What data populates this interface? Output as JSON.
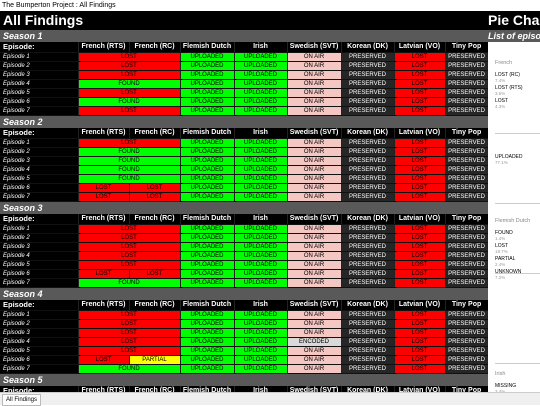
{
  "window": {
    "title": "The Bumperton Project : All Findings"
  },
  "sheet": {
    "title": "All Findings",
    "columns": [
      "Episode:",
      "French (RTS)",
      "French (RC)",
      "Flemish Dutch",
      "Irish",
      "Swedish (SVT)",
      "Korean (DK)",
      "Latvian (VO)",
      "Tiny Pop"
    ],
    "seasons": [
      {
        "name": "Season 1",
        "rows": [
          {
            "ep": "Episode 1",
            "fr_rts": "",
            "fr_rc": "LOST",
            "fr_span": true,
            "flemish": "UPLOADED",
            "irish": "UPLOADED",
            "swedish": "ON AIR",
            "korean": "PRESERVED",
            "latvian": "LOST",
            "tiny": "PRESERVED"
          },
          {
            "ep": "Episode 2",
            "fr_rts": "",
            "fr_rc": "LOST",
            "fr_span": true,
            "flemish": "UPLOADED",
            "irish": "UPLOADED",
            "swedish": "ON AIR",
            "korean": "PRESERVED",
            "latvian": "LOST",
            "tiny": "PRESERVED"
          },
          {
            "ep": "Episode 3",
            "fr_rts": "",
            "fr_rc": "LOST",
            "fr_span": true,
            "flemish": "UPLOADED",
            "irish": "UPLOADED",
            "swedish": "ON AIR",
            "korean": "PRESERVED",
            "latvian": "LOST",
            "tiny": "PRESERVED"
          },
          {
            "ep": "Episode 4",
            "fr_rts": "",
            "fr_rc": "FOUND",
            "fr_span": true,
            "flemish": "UPLOADED",
            "irish": "UPLOADED",
            "swedish": "ON AIR",
            "korean": "PRESERVED",
            "latvian": "LOST",
            "tiny": "PRESERVED"
          },
          {
            "ep": "Episode 5",
            "fr_rts": "",
            "fr_rc": "LOST",
            "fr_span": true,
            "flemish": "UPLOADED",
            "irish": "UPLOADED",
            "swedish": "ON AIR",
            "korean": "PRESERVED",
            "latvian": "LOST",
            "tiny": "PRESERVED"
          },
          {
            "ep": "Episode 6",
            "fr_rts": "",
            "fr_rc": "FOUND",
            "fr_span": true,
            "flemish": "UPLOADED",
            "irish": "UPLOADED",
            "swedish": "ON AIR",
            "korean": "PRESERVED",
            "latvian": "LOST",
            "tiny": "PRESERVED"
          },
          {
            "ep": "Episode 7",
            "fr_rts": "",
            "fr_rc": "LOST",
            "fr_span": true,
            "flemish": "UPLOADED",
            "irish": "UPLOADED",
            "swedish": "ON AIR",
            "korean": "PRESERVED",
            "latvian": "LOST",
            "tiny": "PRESERVED"
          }
        ]
      },
      {
        "name": "Season 2",
        "rows": [
          {
            "ep": "Episode 1",
            "fr_rts": "",
            "fr_rc": "LOST",
            "fr_span": true,
            "flemish": "UPLOADED",
            "irish": "UPLOADED",
            "swedish": "ON AIR",
            "korean": "PRESERVED",
            "latvian": "LOST",
            "tiny": "PRESERVED"
          },
          {
            "ep": "Episode 2",
            "fr_rts": "",
            "fr_rc": "FOUND",
            "fr_span": true,
            "flemish": "UPLOADED",
            "irish": "UPLOADED",
            "swedish": "ON AIR",
            "korean": "PRESERVED",
            "latvian": "LOST",
            "tiny": "PRESERVED"
          },
          {
            "ep": "Episode 3",
            "fr_rts": "",
            "fr_rc": "FOUND",
            "fr_span": true,
            "flemish": "UPLOADED",
            "irish": "UPLOADED",
            "swedish": "ON AIR",
            "korean": "PRESERVED",
            "latvian": "LOST",
            "tiny": "PRESERVED"
          },
          {
            "ep": "Episode 4",
            "fr_rts": "",
            "fr_rc": "FOUND",
            "fr_span": true,
            "flemish": "UPLOADED",
            "irish": "UPLOADED",
            "swedish": "ON AIR",
            "korean": "PRESERVED",
            "latvian": "LOST",
            "tiny": "PRESERVED"
          },
          {
            "ep": "Episode 5",
            "fr_rts": "",
            "fr_rc": "FOUND",
            "fr_span": true,
            "flemish": "UPLOADED",
            "irish": "UPLOADED",
            "swedish": "ON AIR",
            "korean": "PRESERVED",
            "latvian": "LOST",
            "tiny": "PRESERVED"
          },
          {
            "ep": "Episode 6",
            "fr_rts": "LOST",
            "fr_rc": "LOST",
            "fr_span": false,
            "flemish": "UPLOADED",
            "irish": "UPLOADED",
            "swedish": "ON AIR",
            "korean": "PRESERVED",
            "latvian": "LOST",
            "tiny": "PRESERVED"
          },
          {
            "ep": "Episode 7",
            "fr_rts": "LOST",
            "fr_rc": "LOST",
            "fr_span": false,
            "flemish": "UPLOADED",
            "irish": "UPLOADED",
            "swedish": "ON AIR",
            "korean": "PRESERVED",
            "latvian": "LOST",
            "tiny": "PRESERVED"
          }
        ]
      },
      {
        "name": "Season 3",
        "rows": [
          {
            "ep": "Episode 1",
            "fr_rts": "",
            "fr_rc": "LOST",
            "fr_span": true,
            "flemish": "UPLOADED",
            "irish": "UPLOADED",
            "swedish": "ON AIR",
            "korean": "PRESERVED",
            "latvian": "LOST",
            "tiny": "PRESERVED"
          },
          {
            "ep": "Episode 2",
            "fr_rts": "",
            "fr_rc": "LOST",
            "fr_span": true,
            "flemish": "UPLOADED",
            "irish": "UPLOADED",
            "swedish": "ON AIR",
            "korean": "PRESERVED",
            "latvian": "LOST",
            "tiny": "PRESERVED"
          },
          {
            "ep": "Episode 3",
            "fr_rts": "",
            "fr_rc": "LOST",
            "fr_span": true,
            "flemish": "UPLOADED",
            "irish": "UPLOADED",
            "swedish": "ON AIR",
            "korean": "PRESERVED",
            "latvian": "LOST",
            "tiny": "PRESERVED"
          },
          {
            "ep": "Episode 4",
            "fr_rts": "",
            "fr_rc": "LOST",
            "fr_span": true,
            "flemish": "UPLOADED",
            "irish": "UPLOADED",
            "swedish": "ON AIR",
            "korean": "PRESERVED",
            "latvian": "LOST",
            "tiny": "PRESERVED"
          },
          {
            "ep": "Episode 5",
            "fr_rts": "",
            "fr_rc": "LOST",
            "fr_span": true,
            "flemish": "UPLOADED",
            "irish": "UPLOADED",
            "swedish": "ON AIR",
            "korean": "PRESERVED",
            "latvian": "LOST",
            "tiny": "PRESERVED"
          },
          {
            "ep": "Episode 6",
            "fr_rts": "LOST",
            "fr_rc": "LOST",
            "fr_span": false,
            "flemish": "UPLOADED",
            "irish": "UPLOADED",
            "swedish": "ON AIR",
            "korean": "PRESERVED",
            "latvian": "LOST",
            "tiny": "PRESERVED"
          },
          {
            "ep": "Episode 7",
            "fr_rts": "",
            "fr_rc": "FOUND",
            "fr_span": true,
            "flemish": "UPLOADED",
            "irish": "UPLOADED",
            "swedish": "ON AIR",
            "korean": "PRESERVED",
            "latvian": "LOST",
            "tiny": "PRESERVED"
          }
        ]
      },
      {
        "name": "Season 4",
        "rows": [
          {
            "ep": "Episode 1",
            "fr_rts": "",
            "fr_rc": "LOST",
            "fr_span": true,
            "flemish": "UPLOADED",
            "irish": "UPLOADED",
            "swedish": "ON AIR",
            "korean": "PRESERVED",
            "latvian": "LOST",
            "tiny": "PRESERVED"
          },
          {
            "ep": "Episode 2",
            "fr_rts": "",
            "fr_rc": "LOST",
            "fr_span": true,
            "flemish": "UPLOADED",
            "irish": "UPLOADED",
            "swedish": "ON AIR",
            "korean": "PRESERVED",
            "latvian": "LOST",
            "tiny": "PRESERVED"
          },
          {
            "ep": "Episode 3",
            "fr_rts": "",
            "fr_rc": "LOST",
            "fr_span": true,
            "flemish": "UPLOADED",
            "irish": "UPLOADED",
            "swedish": "ON AIR",
            "korean": "PRESERVED",
            "latvian": "LOST",
            "tiny": "PRESERVED"
          },
          {
            "ep": "Episode 4",
            "fr_rts": "",
            "fr_rc": "LOST",
            "fr_span": true,
            "flemish": "UPLOADED",
            "irish": "UPLOADED",
            "swedish": "ENCODED",
            "korean": "PRESERVED",
            "latvian": "LOST",
            "tiny": "PRESERVED"
          },
          {
            "ep": "Episode 5",
            "fr_rts": "",
            "fr_rc": "LOST",
            "fr_span": true,
            "flemish": "UPLOADED",
            "irish": "UPLOADED",
            "swedish": "ON AIR",
            "korean": "PRESERVED",
            "latvian": "LOST",
            "tiny": "PRESERVED"
          },
          {
            "ep": "Episode 6",
            "fr_rts": "LOST",
            "fr_rc": "PARTIAL",
            "fr_span": false,
            "flemish": "UPLOADED",
            "irish": "UPLOADED",
            "swedish": "ON AIR",
            "korean": "PRESERVED",
            "latvian": "LOST",
            "tiny": "PRESERVED"
          },
          {
            "ep": "Episode 7",
            "fr_rts": "",
            "fr_rc": "FOUND",
            "fr_span": true,
            "flemish": "UPLOADED",
            "irish": "UPLOADED",
            "swedish": "ON AIR",
            "korean": "PRESERVED",
            "latvian": "LOST",
            "tiny": "PRESERVED"
          }
        ]
      },
      {
        "name": "Season 5",
        "rows": []
      }
    ]
  },
  "side": {
    "title": "Pie Char",
    "list_title": "List of episo",
    "pies": [
      {
        "title": "French",
        "items": [
          {
            "label": "LOST (RC)",
            "pct": "7.4%"
          },
          {
            "label": "LOST (RTS)",
            "pct": "3.5%"
          },
          {
            "label": "LOST",
            "pct": "4.3%"
          }
        ]
      },
      {
        "title": "",
        "items": [
          {
            "label": "UPLOADED",
            "pct": "77.1%"
          }
        ]
      },
      {
        "title": "Flemish Dutch",
        "items": [
          {
            "label": "FOUND",
            "pct": "1.4%"
          },
          {
            "label": "LOST",
            "pct": "18.7%"
          },
          {
            "label": "PARTIAL",
            "pct": "2.4%"
          },
          {
            "label": "UNKNOWN",
            "pct": "7.2%"
          }
        ]
      },
      {
        "title": "Irish",
        "items": [
          {
            "label": "MISSING",
            "pct": "3.4%"
          }
        ]
      }
    ]
  },
  "tabs": [
    {
      "label": "All Findings"
    }
  ]
}
